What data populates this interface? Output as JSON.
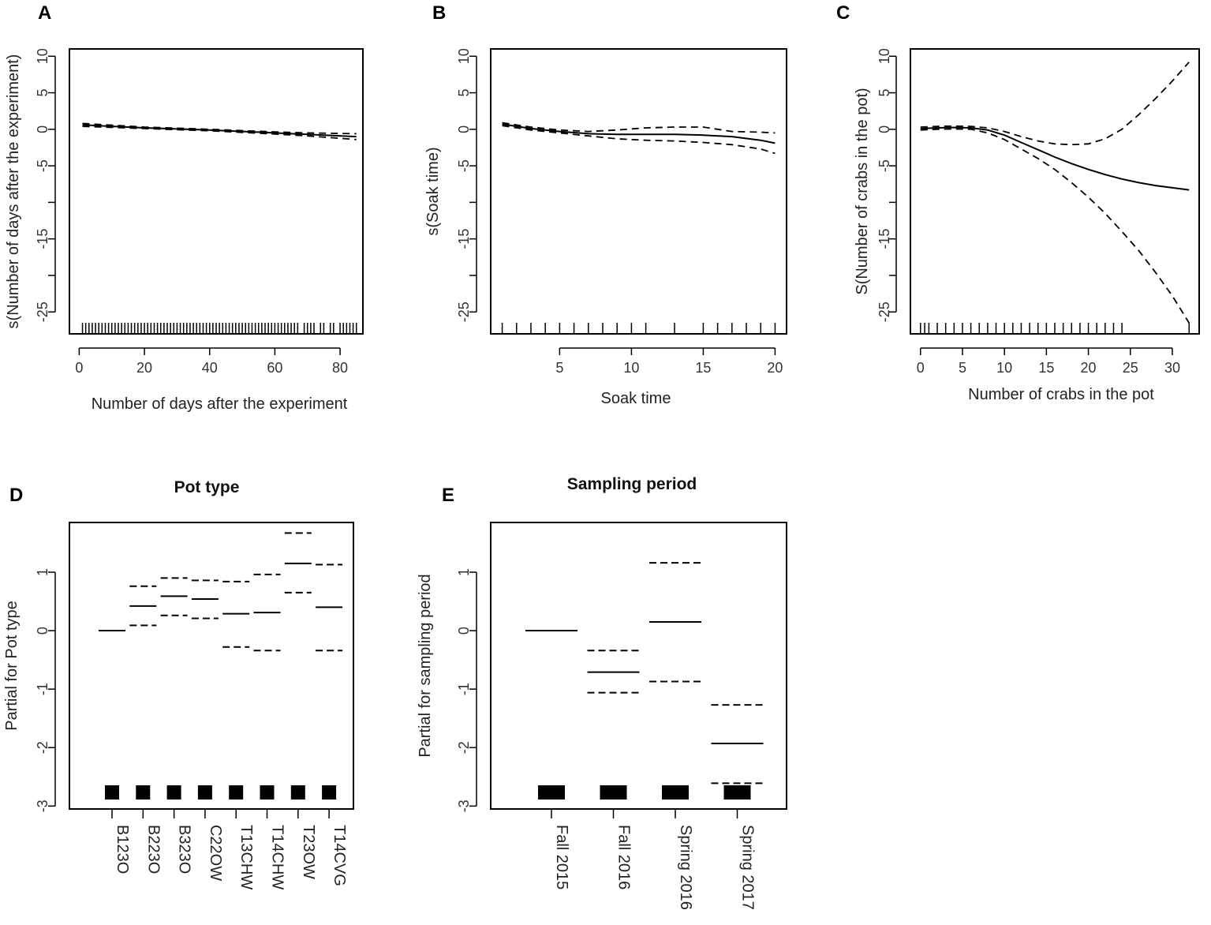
{
  "chart_data": [
    {
      "panel": "A",
      "type": "line",
      "title": "",
      "xlabel": "Number of days after the experiment",
      "ylabel": "s(Number of days after the experiment)",
      "xlim": [
        -3,
        87
      ],
      "ylim": [
        -28,
        11
      ],
      "xticks": [
        0,
        20,
        40,
        60,
        80
      ],
      "xtick_labels": [
        "0",
        "20",
        "40",
        "60",
        "80"
      ],
      "yticks": [
        10,
        5,
        0,
        -5,
        -15,
        -25
      ],
      "ytick_labels": [
        "10",
        "5",
        "0",
        "-5",
        "-15",
        "-25"
      ],
      "series": [
        {
          "name": "fit",
          "style": "solid",
          "x": [
            1,
            20,
            40,
            60,
            70,
            85
          ],
          "y": [
            0.6,
            0.2,
            -0.1,
            -0.5,
            -0.7,
            -1.0
          ]
        },
        {
          "name": "upper",
          "style": "dashed",
          "x": [
            1,
            20,
            40,
            60,
            70,
            85
          ],
          "y": [
            0.8,
            0.3,
            0.0,
            -0.35,
            -0.5,
            -0.6
          ]
        },
        {
          "name": "lower",
          "style": "dashed",
          "x": [
            1,
            20,
            40,
            60,
            70,
            85
          ],
          "y": [
            0.4,
            0.1,
            -0.2,
            -0.65,
            -0.9,
            -1.4
          ]
        }
      ],
      "rug": [
        1,
        2,
        3,
        4,
        5,
        6,
        7,
        8,
        9,
        10,
        11,
        12,
        13,
        14,
        15,
        16,
        17,
        18,
        19,
        20,
        21,
        22,
        23,
        24,
        25,
        26,
        27,
        28,
        29,
        30,
        31,
        32,
        33,
        34,
        35,
        36,
        37,
        38,
        39,
        40,
        41,
        42,
        43,
        44,
        45,
        46,
        47,
        48,
        49,
        50,
        51,
        52,
        53,
        54,
        55,
        56,
        57,
        58,
        59,
        60,
        61,
        62,
        63,
        64,
        65,
        66,
        67,
        69,
        70,
        71,
        72,
        74,
        75,
        77,
        78,
        80,
        81,
        82,
        83,
        84,
        85
      ]
    },
    {
      "panel": "B",
      "type": "line",
      "title": "",
      "xlabel": "Soak time",
      "ylabel": "s(Soak time)",
      "xlim": [
        0.2,
        20.8
      ],
      "ylim": [
        -28,
        11
      ],
      "xticks": [
        5,
        10,
        15,
        20
      ],
      "xtick_labels": [
        "5",
        "10",
        "15",
        "20"
      ],
      "yticks": [
        10,
        5,
        0,
        -5,
        -15,
        -25
      ],
      "ytick_labels": [
        "10",
        "5",
        "0",
        "-5",
        "-15",
        "-25"
      ],
      "series": [
        {
          "name": "fit",
          "style": "solid",
          "x": [
            1,
            3,
            5,
            7,
            9,
            11,
            13,
            15,
            17,
            19,
            20
          ],
          "y": [
            0.7,
            0.1,
            -0.3,
            -0.6,
            -0.7,
            -0.7,
            -0.7,
            -0.8,
            -1.0,
            -1.5,
            -1.9
          ]
        },
        {
          "name": "upper",
          "style": "dashed",
          "x": [
            1,
            3,
            5,
            7,
            9,
            11,
            13,
            15,
            17,
            19,
            20
          ],
          "y": [
            0.9,
            0.3,
            -0.1,
            -0.3,
            -0.1,
            0.2,
            0.3,
            0.3,
            -0.3,
            -0.4,
            -0.5
          ]
        },
        {
          "name": "lower",
          "style": "dashed",
          "x": [
            1,
            3,
            5,
            7,
            9,
            11,
            13,
            15,
            17,
            19,
            20
          ],
          "y": [
            0.5,
            -0.1,
            -0.5,
            -0.9,
            -1.3,
            -1.5,
            -1.6,
            -1.8,
            -2.1,
            -2.7,
            -3.3
          ]
        }
      ],
      "rug": [
        1,
        2,
        3,
        4,
        5,
        6,
        7,
        8,
        9,
        10,
        11,
        13,
        15,
        16,
        17,
        18,
        19,
        20
      ]
    },
    {
      "panel": "C",
      "type": "line",
      "title": "",
      "xlabel": "Number of crabs in the pot",
      "ylabel": "S(Number of crabs in the pot)",
      "xlim": [
        -1.2,
        33.2
      ],
      "ylim": [
        -28,
        11
      ],
      "xticks": [
        0,
        5,
        10,
        15,
        20,
        25,
        30
      ],
      "xtick_labels": [
        "0",
        "5",
        "10",
        "15",
        "20",
        "25",
        "30"
      ],
      "yticks": [
        10,
        5,
        0,
        -5,
        -15,
        -25
      ],
      "ytick_labels": [
        "10",
        "5",
        "0",
        "-5",
        "-15",
        "-25"
      ],
      "series": [
        {
          "name": "fit",
          "style": "solid",
          "x": [
            0,
            2,
            4,
            6,
            8,
            10,
            12,
            14,
            16,
            18,
            20,
            22,
            24,
            26,
            28,
            30,
            32
          ],
          "y": [
            0.1,
            0.2,
            0.25,
            0.2,
            -0.1,
            -0.8,
            -1.8,
            -2.8,
            -3.8,
            -4.7,
            -5.5,
            -6.2,
            -6.8,
            -7.3,
            -7.7,
            -8.0,
            -8.3
          ]
        },
        {
          "name": "upper",
          "style": "dashed",
          "x": [
            0,
            2,
            4,
            6,
            8,
            10,
            12,
            14,
            16,
            18,
            20,
            22,
            24,
            26,
            28,
            30,
            32
          ],
          "y": [
            0.3,
            0.4,
            0.45,
            0.4,
            0.2,
            -0.3,
            -1.0,
            -1.6,
            -2.0,
            -2.1,
            -2.0,
            -1.3,
            0.0,
            2.0,
            4.2,
            6.6,
            9.2
          ]
        },
        {
          "name": "lower",
          "style": "dashed",
          "x": [
            0,
            2,
            4,
            6,
            8,
            10,
            12,
            14,
            16,
            18,
            20,
            22,
            24,
            26,
            28,
            30,
            32
          ],
          "y": [
            -0.1,
            0.0,
            0.05,
            0.0,
            -0.5,
            -1.4,
            -2.7,
            -4.0,
            -5.5,
            -7.3,
            -9.3,
            -11.5,
            -14.0,
            -16.6,
            -19.6,
            -22.8,
            -26.5
          ]
        }
      ],
      "rug": [
        0,
        0.5,
        1,
        2,
        3,
        4,
        5,
        6,
        7,
        8,
        9,
        10,
        11,
        12,
        13,
        14,
        15,
        16,
        17,
        18,
        19,
        20,
        21,
        22,
        23,
        24,
        32
      ]
    },
    {
      "panel": "D",
      "type": "bar",
      "title": "Pot type",
      "xlabel": "",
      "ylabel": "Partial for Pot type",
      "ylim": [
        -3.05,
        1.85
      ],
      "yticks": [
        1,
        0,
        -1,
        -2,
        -3
      ],
      "ytick_labels": [
        "1",
        "0",
        "-1",
        "-2",
        "-3"
      ],
      "categories": [
        "B123O",
        "B223O",
        "B323O",
        "C22OW",
        "T13CHW",
        "T14CHW",
        "T23OW",
        "T14CVG"
      ],
      "series": [
        {
          "name": "estimate",
          "values": [
            0,
            0.42,
            0.59,
            0.54,
            0.29,
            0.31,
            1.15,
            0.4
          ]
        },
        {
          "name": "upper",
          "values": [
            null,
            0.76,
            0.9,
            0.86,
            0.84,
            0.96,
            1.67,
            1.13
          ]
        },
        {
          "name": "lower",
          "values": [
            null,
            0.09,
            0.26,
            0.21,
            -0.28,
            -0.34,
            0.65,
            -0.34
          ]
        }
      ]
    },
    {
      "panel": "E",
      "type": "bar",
      "title": "Sampling period",
      "xlabel": "",
      "ylabel": "Partial for sampling period",
      "ylim": [
        -3.05,
        1.85
      ],
      "yticks": [
        1,
        0,
        -1,
        -2,
        -3
      ],
      "ytick_labels": [
        "1",
        "0",
        "-1",
        "-2",
        "-3"
      ],
      "categories": [
        "Fall 2015",
        "Fall 2016",
        "Spring 2016",
        "Spring 2017"
      ],
      "series": [
        {
          "name": "estimate",
          "values": [
            0,
            -0.71,
            0.15,
            -1.93
          ]
        },
        {
          "name": "upper",
          "values": [
            null,
            -0.34,
            1.16,
            -1.27
          ]
        },
        {
          "name": "lower",
          "values": [
            null,
            -1.06,
            -0.87,
            -2.61
          ]
        }
      ]
    }
  ]
}
